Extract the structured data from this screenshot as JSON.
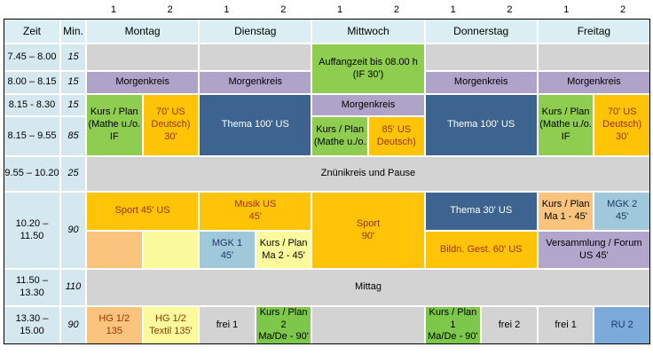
{
  "columns": {
    "numbers": [
      "1",
      "2"
    ]
  },
  "header": {
    "zeit_label": "Zeit",
    "min_label": "Min.",
    "days": [
      "Montag",
      "Dienstag",
      "Mittwoch",
      "Donnerstag",
      "Freitag"
    ]
  },
  "rows": [
    {
      "zeit": "7.45 – 8.00",
      "min": "15"
    },
    {
      "zeit": "8.00 – 8.15",
      "min": "15"
    },
    {
      "zeit": "8.15 - 8.30",
      "min": "15"
    },
    {
      "zeit": "8.15 – 9.55",
      "min": "85"
    },
    {
      "zeit": "9.55 – 10.20",
      "min": "25"
    },
    {
      "zeit": "10.20 – 11.50",
      "min": "90"
    },
    {
      "zeit": "11.50 – 13.30",
      "min": "110"
    },
    {
      "zeit": "13.30 – 15.00",
      "min": "90"
    }
  ],
  "colors": {
    "page_bg": "#ffffff",
    "border": "#000000",
    "header_bg": "#daeef3",
    "time_bg": "#d5e8f0",
    "gray": "#d3d3d3",
    "purple": "#b0a3c9",
    "green": "#8ecd50",
    "green_dark": "#7dc84a",
    "amber": "#ffc408",
    "dark_blue": "#3c648e",
    "light_orange": "#fac47f",
    "light_yellow": "#fbfb9d",
    "light_cyan": "#9fc9da",
    "lavender": "#b3a6cc",
    "blue": "#7caadb",
    "text_black": "#000000",
    "text_dark_red": "#993300",
    "text_white": "#ffffff",
    "text_navy": "#1f3864"
  },
  "grid": {
    "cells": [
      {
        "r": 2,
        "c": 3,
        "cs": 2,
        "bg": "gray",
        "text": ""
      },
      {
        "r": 2,
        "c": 5,
        "cs": 2,
        "bg": "gray",
        "text": ""
      },
      {
        "r": 2,
        "c": 7,
        "cs": 2,
        "rs": 2,
        "bg": "green",
        "text": "Auffangzeit bis 08.00 h\n(IF 30')"
      },
      {
        "r": 2,
        "c": 9,
        "cs": 2,
        "bg": "gray",
        "text": ""
      },
      {
        "r": 2,
        "c": 11,
        "cs": 2,
        "bg": "gray",
        "text": ""
      },
      {
        "r": 3,
        "c": 3,
        "cs": 2,
        "bg": "purple",
        "text": "Morgenkreis"
      },
      {
        "r": 3,
        "c": 5,
        "cs": 2,
        "bg": "purple",
        "text": "Morgenkreis"
      },
      {
        "r": 3,
        "c": 9,
        "cs": 2,
        "bg": "purple",
        "text": "Morgenkreis"
      },
      {
        "r": 3,
        "c": 11,
        "cs": 2,
        "bg": "purple",
        "text": "Morgenkreis"
      },
      {
        "r": 4,
        "c": 3,
        "rs": 2,
        "bg": "green",
        "text": "Kurs / Plan\n(Mathe u./o.\nIF"
      },
      {
        "r": 4,
        "c": 4,
        "rs": 2,
        "bg": "amber",
        "fg": "text_dark_red",
        "text": "70' US\nDeutsch)\n30'"
      },
      {
        "r": 4,
        "c": 5,
        "cs": 2,
        "rs": 2,
        "bg": "dark_blue",
        "fg": "text_white",
        "text": "Thema 100' US"
      },
      {
        "r": 4,
        "c": 7,
        "cs": 2,
        "bg": "purple",
        "text": "Morgenkreis"
      },
      {
        "r": 4,
        "c": 9,
        "cs": 2,
        "rs": 2,
        "bg": "dark_blue",
        "fg": "text_white",
        "text": "Thema 100' US"
      },
      {
        "r": 4,
        "c": 11,
        "rs": 2,
        "bg": "green",
        "text": "Kurs / Plan\n(Mathe u./o.\nIF"
      },
      {
        "r": 4,
        "c": 12,
        "rs": 2,
        "bg": "amber",
        "fg": "text_dark_red",
        "text": "70' US\nDeutsch)\n30'"
      },
      {
        "r": 5,
        "c": 7,
        "bg": "green",
        "text": "Kurs / Plan\n(Mathe u./o."
      },
      {
        "r": 5,
        "c": 8,
        "bg": "amber",
        "fg": "text_dark_red",
        "text": "85' US\nDeutsch)"
      },
      {
        "r": 6,
        "c": 3,
        "cs": 10,
        "bg": "gray",
        "text": "Znünikreis und Pause"
      },
      {
        "r": 7,
        "c": 3,
        "cs": 2,
        "bg": "amber",
        "fg": "text_dark_red",
        "text": "Sport 45' US"
      },
      {
        "r": 7,
        "c": 5,
        "cs": 2,
        "bg": "amber",
        "fg": "text_dark_red",
        "text": "Musik US\n45'"
      },
      {
        "r": 7,
        "c": 7,
        "cs": 2,
        "rs": 2,
        "bg": "amber",
        "fg": "text_dark_red",
        "text": "Sport\n90'"
      },
      {
        "r": 7,
        "c": 9,
        "cs": 2,
        "bg": "dark_blue",
        "fg": "text_white",
        "text": "Thema 30' US"
      },
      {
        "r": 7,
        "c": 11,
        "bg": "light_orange",
        "text": "Kurs / Plan\nMa 1 - 45'"
      },
      {
        "r": 7,
        "c": 12,
        "bg": "light_cyan",
        "fg": "text_navy",
        "text": "MGK 2\n45'"
      },
      {
        "r": 8,
        "c": 3,
        "bg": "light_orange",
        "text": ""
      },
      {
        "r": 8,
        "c": 4,
        "bg": "light_yellow",
        "text": ""
      },
      {
        "r": 8,
        "c": 5,
        "bg": "light_cyan",
        "fg": "text_navy",
        "text": "MGK 1\n45'"
      },
      {
        "r": 8,
        "c": 6,
        "bg": "light_yellow",
        "text": "Kurs / Plan\nMa 2 - 45'"
      },
      {
        "r": 8,
        "c": 9,
        "cs": 2,
        "bg": "amber",
        "fg": "text_dark_red",
        "text": "Bildn. Gest. 60' US"
      },
      {
        "r": 8,
        "c": 11,
        "cs": 2,
        "bg": "lavender",
        "text": "Versammlung / Forum\nUS 45'"
      },
      {
        "r": 9,
        "c": 3,
        "cs": 10,
        "bg": "gray",
        "text": "Mittag"
      },
      {
        "r": 10,
        "c": 3,
        "bg": "light_orange",
        "fg": "text_dark_red",
        "text": "HG 1/2\n135"
      },
      {
        "r": 10,
        "c": 4,
        "bg": "light_yellow",
        "fg": "text_dark_red",
        "text": "HG 1/2\nTextil 135'"
      },
      {
        "r": 10,
        "c": 5,
        "bg": "gray",
        "text": "frei 1"
      },
      {
        "r": 10,
        "c": 6,
        "bg": "green_dark",
        "text": "Kurs / Plan 2\nMa/De - 90'"
      },
      {
        "r": 10,
        "c": 7,
        "cs": 2,
        "bg": "gray",
        "text": ""
      },
      {
        "r": 10,
        "c": 9,
        "bg": "green_dark",
        "text": "Kurs / Plan 1\nMa/De - 90'"
      },
      {
        "r": 10,
        "c": 10,
        "bg": "gray",
        "text": "frei 2"
      },
      {
        "r": 10,
        "c": 11,
        "bg": "gray",
        "text": "frei 1"
      },
      {
        "r": 10,
        "c": 12,
        "bg": "blue",
        "fg": "text_navy",
        "text": "RU 2"
      }
    ]
  }
}
